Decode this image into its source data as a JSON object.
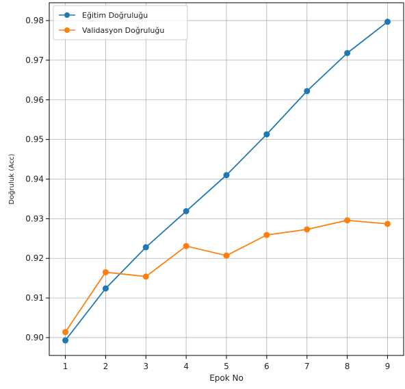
{
  "chart_data": {
    "type": "line",
    "xlabel": "Epok No",
    "ylabel": "Doğruluk (Acc)",
    "x": [
      1,
      2,
      3,
      4,
      5,
      6,
      7,
      8,
      9
    ],
    "xlim": [
      0.6,
      9.4
    ],
    "ylim": [
      0.8955,
      0.9845
    ],
    "yticks": [
      0.9,
      0.91,
      0.92,
      0.93,
      0.94,
      0.95,
      0.96,
      0.97,
      0.98
    ],
    "ytick_labels": [
      "0.90",
      "0.91",
      "0.92",
      "0.93",
      "0.94",
      "0.95",
      "0.96",
      "0.97",
      "0.98"
    ],
    "xticks": [
      1,
      2,
      3,
      4,
      5,
      6,
      7,
      8,
      9
    ],
    "grid": true,
    "legend_position": "top-left",
    "series": [
      {
        "name": "Eğitim Doğruluğu",
        "color": "#1f77b4",
        "values": [
          0.8993,
          0.9124,
          0.9228,
          0.9319,
          0.941,
          0.9513,
          0.9622,
          0.9718,
          0.9797
        ]
      },
      {
        "name": "Validasyon Doğruluğu",
        "color": "#ff7f0e",
        "values": [
          0.9014,
          0.9165,
          0.9154,
          0.9231,
          0.9207,
          0.9259,
          0.9273,
          0.9296,
          0.9287
        ]
      }
    ]
  }
}
